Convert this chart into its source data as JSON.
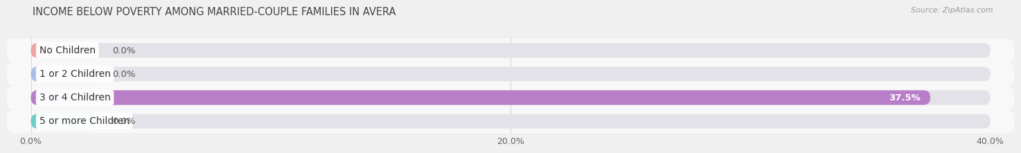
{
  "title": "INCOME BELOW POVERTY AMONG MARRIED-COUPLE FAMILIES IN AVERA",
  "source": "Source: ZipAtlas.com",
  "categories": [
    "No Children",
    "1 or 2 Children",
    "3 or 4 Children",
    "5 or more Children"
  ],
  "values": [
    0.0,
    0.0,
    37.5,
    0.0
  ],
  "bar_colors": [
    "#f2a0a8",
    "#a8c0e8",
    "#b87ec8",
    "#70ccc8"
  ],
  "xlim": [
    0,
    40
  ],
  "xticks": [
    0,
    20,
    40
  ],
  "xticklabels": [
    "0.0%",
    "20.0%",
    "40.0%"
  ],
  "bar_height": 0.62,
  "background_color": "#f0f0f0",
  "row_bg_color": "#ffffff",
  "title_fontsize": 10.5,
  "label_fontsize": 10,
  "value_fontsize": 9.5,
  "min_bar_display": 2.8,
  "grid_color": "#d8d8d8",
  "label_pill_color": "#ffffff"
}
